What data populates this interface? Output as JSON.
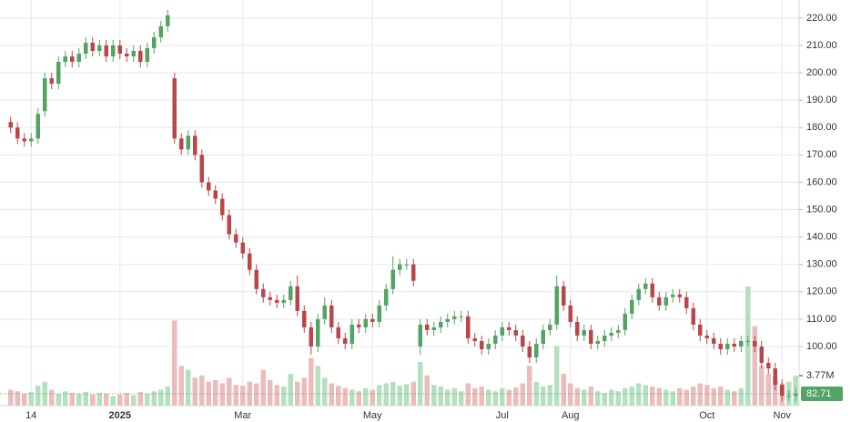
{
  "chart_data": {
    "type": "candlestick",
    "open": [
      182,
      180,
      176,
      175,
      176,
      186,
      198,
      196,
      204,
      206,
      204,
      207,
      211,
      208,
      210,
      206,
      210,
      207,
      206,
      208,
      204,
      209,
      213,
      217,
      198,
      176,
      172,
      177,
      170,
      160,
      157,
      154,
      148,
      141,
      138,
      134,
      128,
      121,
      118,
      117,
      116,
      117,
      122,
      113,
      107,
      100,
      110,
      115,
      107,
      103,
      101,
      108,
      107,
      110,
      109,
      115,
      121,
      128,
      130,
      130,
      100,
      108,
      106,
      107,
      109,
      110,
      111,
      111,
      103,
      102,
      99,
      101,
      104,
      107,
      106,
      104,
      100,
      96,
      101,
      106,
      108,
      122,
      115,
      109,
      104,
      106,
      101,
      102,
      104,
      105,
      106,
      112,
      117,
      121,
      123,
      118,
      115,
      118,
      119,
      118,
      114,
      108,
      104,
      103,
      101,
      99,
      101,
      100,
      102,
      102,
      100,
      94,
      92,
      86,
      82,
      82
    ],
    "high": [
      184,
      182,
      178,
      178,
      187,
      200,
      200,
      206,
      208,
      208,
      209,
      213,
      213,
      212,
      212,
      212,
      212,
      209,
      210,
      210,
      211,
      215,
      219,
      223,
      200,
      178,
      179,
      179,
      172,
      162,
      159,
      156,
      150,
      143,
      140,
      136,
      130,
      123,
      120,
      119,
      119,
      124,
      126,
      115,
      109,
      112,
      118,
      117,
      109,
      105,
      110,
      110,
      112,
      112,
      117,
      123,
      133,
      132,
      132,
      132,
      110,
      110,
      109,
      111,
      112,
      113,
      113,
      113,
      105,
      104,
      103,
      106,
      109,
      109,
      108,
      106,
      102,
      103,
      108,
      110,
      126,
      124,
      117,
      111,
      108,
      108,
      104,
      106,
      107,
      108,
      114,
      119,
      123,
      125,
      125,
      120,
      120,
      121,
      121,
      120,
      116,
      110,
      106,
      105,
      103,
      103,
      103,
      104,
      104,
      104,
      102,
      96,
      94,
      88,
      84,
      85
    ],
    "low": [
      178,
      174,
      173,
      173,
      174,
      184,
      194,
      194,
      202,
      202,
      202,
      205,
      206,
      206,
      204,
      204,
      205,
      204,
      204,
      202,
      202,
      207,
      211,
      215,
      174,
      170,
      170,
      168,
      158,
      155,
      152,
      146,
      139,
      136,
      132,
      126,
      119,
      116,
      115,
      114,
      114,
      115,
      111,
      105,
      97,
      98,
      108,
      105,
      101,
      99,
      99,
      105,
      105,
      107,
      107,
      113,
      119,
      126,
      128,
      122,
      97,
      104,
      104,
      105,
      107,
      108,
      109,
      101,
      100,
      97,
      97,
      99,
      102,
      104,
      102,
      98,
      94,
      94,
      99,
      104,
      106,
      113,
      107,
      102,
      102,
      99,
      99,
      100,
      102,
      103,
      104,
      110,
      115,
      119,
      116,
      113,
      113,
      116,
      116,
      112,
      106,
      102,
      101,
      99,
      97,
      97,
      98,
      98,
      100,
      98,
      92,
      90,
      84,
      80,
      80,
      80
    ],
    "close": [
      180,
      176,
      175,
      176,
      185,
      198,
      196,
      204,
      206,
      204,
      207,
      211,
      208,
      210,
      206,
      210,
      207,
      206,
      208,
      204,
      209,
      213,
      217,
      221,
      176,
      172,
      177,
      170,
      160,
      157,
      154,
      148,
      141,
      138,
      134,
      128,
      121,
      118,
      117,
      116,
      117,
      122,
      113,
      107,
      100,
      110,
      115,
      107,
      103,
      101,
      108,
      107,
      110,
      109,
      115,
      121,
      128,
      130,
      130,
      124,
      108,
      106,
      107,
      109,
      110,
      111,
      111,
      103,
      102,
      99,
      101,
      104,
      107,
      106,
      104,
      100,
      96,
      101,
      106,
      108,
      122,
      115,
      109,
      104,
      106,
      101,
      102,
      104,
      105,
      106,
      112,
      117,
      121,
      123,
      118,
      115,
      118,
      119,
      118,
      114,
      108,
      104,
      103,
      101,
      99,
      101,
      100,
      102,
      102,
      100,
      94,
      92,
      86,
      82,
      82,
      82.71
    ],
    "volume": [
      2.0,
      1.8,
      1.5,
      1.7,
      2.5,
      3.0,
      2.0,
      1.5,
      1.8,
      1.6,
      1.5,
      1.7,
      1.4,
      1.6,
      1.5,
      1.2,
      1.4,
      1.6,
      1.3,
      1.7,
      1.5,
      1.8,
      2.0,
      2.4,
      10.7,
      5.0,
      4.5,
      3.5,
      3.8,
      3.0,
      3.2,
      2.8,
      3.5,
      2.6,
      2.5,
      3.0,
      2.8,
      4.5,
      3.2,
      2.6,
      2.4,
      4.0,
      3.0,
      3.5,
      6.0,
      5.0,
      3.5,
      2.8,
      2.5,
      2.2,
      2.0,
      1.8,
      2.2,
      2.0,
      2.6,
      2.8,
      3.0,
      2.5,
      2.7,
      3.0,
      5.5,
      3.8,
      2.6,
      2.4,
      2.0,
      2.2,
      1.8,
      2.8,
      2.2,
      2.4,
      2.0,
      1.8,
      2.2,
      2.0,
      2.3,
      2.8,
      5.0,
      3.0,
      2.4,
      2.6,
      7.5,
      4.0,
      2.8,
      2.2,
      2.0,
      2.4,
      1.8,
      1.6,
      2.0,
      1.8,
      2.2,
      2.4,
      2.8,
      2.6,
      2.4,
      2.2,
      2.0,
      1.8,
      2.2,
      2.0,
      2.4,
      2.8,
      2.6,
      2.2,
      2.4,
      2.0,
      1.8,
      2.2,
      15.0,
      10.0,
      5.0,
      4.0,
      3.5,
      2.8,
      3.0,
      3.77
    ],
    "volume_last_label": "3.77M",
    "up_color": "#53a464",
    "down_color": "#b9474a",
    "volume_up_color": "#b5e0c0",
    "volume_down_color": "#ecbcbc",
    "xlim": [
      -0.5,
      115.5
    ],
    "xticks": [
      {
        "value": 3,
        "label": "14"
      },
      {
        "value": 16,
        "label": "2025"
      },
      {
        "value": 34,
        "label": "Mar"
      },
      {
        "value": 53,
        "label": "May"
      },
      {
        "value": 72,
        "label": "Jul"
      },
      {
        "value": 82,
        "label": "Aug"
      },
      {
        "value": 102,
        "label": "Oct"
      },
      {
        "value": 113,
        "label": "Nov"
      }
    ],
    "ylim": [
      78.4,
      226.6
    ],
    "yticks": [
      {
        "value": 100,
        "label": "100.00"
      },
      {
        "value": 110,
        "label": "110.00"
      },
      {
        "value": 120,
        "label": "120.00"
      },
      {
        "value": 130,
        "label": "130.00"
      },
      {
        "value": 140,
        "label": "140.00"
      },
      {
        "value": 150,
        "label": "150.00"
      },
      {
        "value": 160,
        "label": "160.00"
      },
      {
        "value": 170,
        "label": "170.00"
      },
      {
        "value": 180,
        "label": "180.00"
      },
      {
        "value": 190,
        "label": "190.00"
      },
      {
        "value": 200,
        "label": "200.00"
      },
      {
        "value": 210,
        "label": "210.00"
      },
      {
        "value": 220,
        "label": "220.00"
      }
    ],
    "volume_lim": [
      0,
      51
    ],
    "grid": true
  }
}
